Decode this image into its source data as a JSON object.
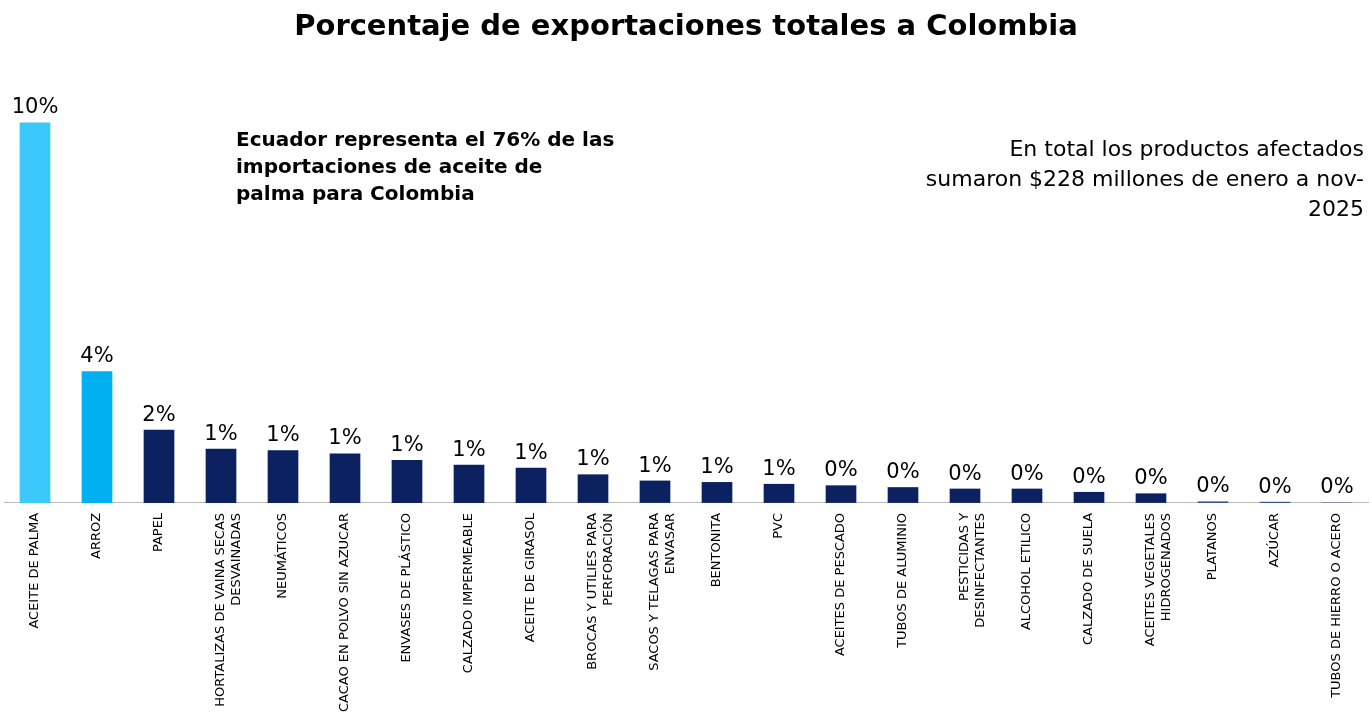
{
  "chart_data": {
    "type": "bar",
    "title": "Porcentaje de exportaciones totales a Colombia",
    "categories": [
      "ACEITE DE PALMA",
      "ARROZ",
      "PAPEL",
      "HORTALIZAS DE VAINA SECAS DESVAINADAS",
      "NEUMÁTICOS",
      "CACAO EN POLVO SIN AZUCAR",
      "ENVASES DE PLÁSTICO",
      "CALZADO IMPERMEABLE",
      "ACEITE DE GIRASOL",
      "BROCAS Y UTILIES PARA PERFORACIÓN",
      "SACOS Y TELAGAS PARA ENVASAR",
      "BENTONITA",
      "PVC",
      "ACEITES DE PESCADO",
      "TUBOS DE ALUMINIO",
      "PESTICIDAS Y DESINFECTANTES",
      "ALCOHOL ETILICO",
      "CALZADO DE SUELA",
      "ACEITES VEGETALES HIDROGENADOS",
      "PLATANOS",
      "AZÚCAR",
      "TUBOS DE HIERRO O ACERO"
    ],
    "values": [
      10.4,
      3.6,
      2.0,
      1.48,
      1.44,
      1.35,
      1.17,
      1.04,
      0.96,
      0.78,
      0.61,
      0.57,
      0.52,
      0.48,
      0.43,
      0.39,
      0.39,
      0.3,
      0.26,
      0.04,
      0.03,
      0.01
    ],
    "colors": [
      "#3cc8fa",
      "#00b0f0",
      "#0b2160",
      "#0b2160",
      "#0b2160",
      "#0b2160",
      "#0b2160",
      "#0b2160",
      "#0b2160",
      "#0b2160",
      "#0b2160",
      "#0b2160",
      "#0b2160",
      "#0b2160",
      "#0b2160",
      "#0b2160",
      "#0b2160",
      "#0b2160",
      "#0b2160",
      "#2e4a8c",
      "#2e4a8c",
      "#2e4a8c"
    ],
    "value_labels": [
      "10%",
      "4%",
      "2%",
      "1%",
      "1%",
      "1%",
      "1%",
      "1%",
      "1%",
      "1%",
      "1%",
      "1%",
      "1%",
      "0%",
      "0%",
      "0%",
      "0%",
      "0%",
      "0%",
      "0%",
      "0%",
      "0%"
    ],
    "annotations": [
      "Ecuador representa el 76% de las importaciones de aceite de palma para Colombia",
      "En total los productos afectados sumaron $228 millones de enero a nov-2025"
    ],
    "grid": false,
    "legend": false,
    "tick_labels": "x"
  }
}
